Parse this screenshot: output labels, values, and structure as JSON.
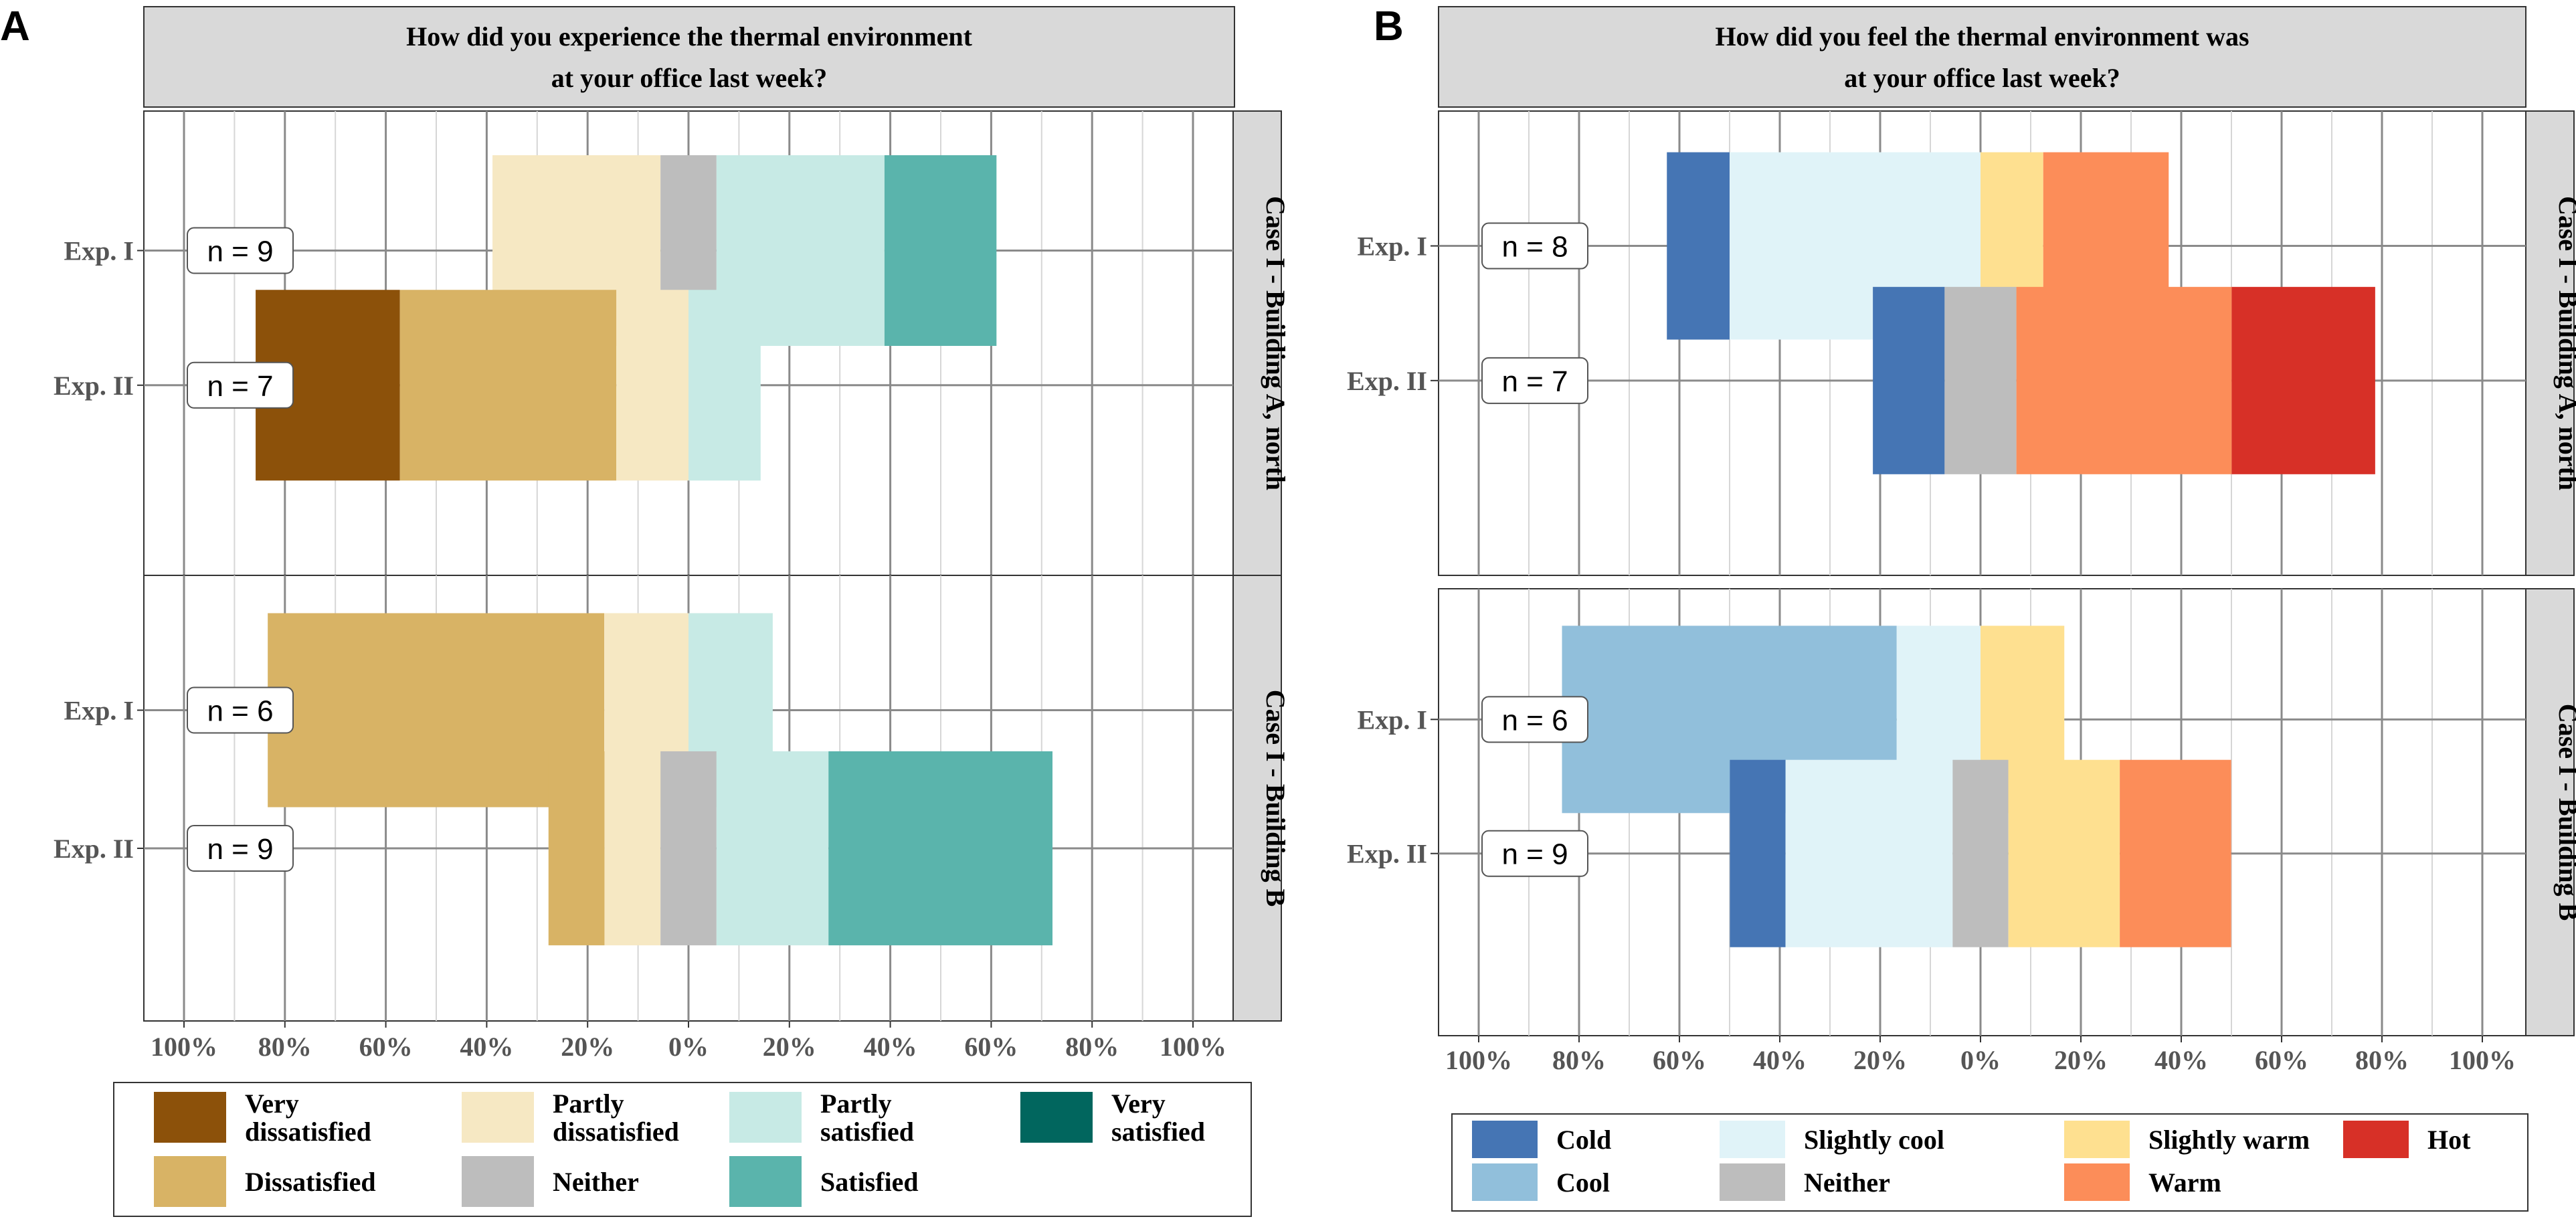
{
  "chart_data": [
    {
      "type": "bar",
      "orientation": "horizontal-diverging",
      "panel_letter": "A",
      "title_lines": [
        "How did you experience the thermal environment",
        "at your office last week?"
      ],
      "xlim": [
        -100,
        100
      ],
      "x_ticks": [
        -100,
        -80,
        -60,
        -40,
        -20,
        0,
        20,
        40,
        60,
        80,
        100
      ],
      "x_tick_labels": [
        "100%",
        "80%",
        "60%",
        "40%",
        "20%",
        "0%",
        "20%",
        "40%",
        "60%",
        "80%",
        "100%"
      ],
      "legend_position": "bottom",
      "categories": [
        {
          "name": "Very dissatisfied",
          "label_lines": [
            "Very",
            "dissatisfied"
          ],
          "color": "#8C510A"
        },
        {
          "name": "Dissatisfied",
          "label_lines": [
            "Dissatisfied"
          ],
          "color": "#D8B365"
        },
        {
          "name": "Partly dissatisfied",
          "label_lines": [
            "Partly",
            "dissatisfied"
          ],
          "color": "#F6E8C3"
        },
        {
          "name": "Neither",
          "label_lines": [
            "Neither"
          ],
          "color": "#BDBDBD"
        },
        {
          "name": "Partly satisfied",
          "label_lines": [
            "Partly",
            "satisfied"
          ],
          "color": "#C7EAE5"
        },
        {
          "name": "Satisfied",
          "label_lines": [
            "Satisfied"
          ],
          "color": "#5AB4AC"
        },
        {
          "name": "Very satisfied",
          "label_lines": [
            "Very",
            "satisfied"
          ],
          "color": "#01665E"
        }
      ],
      "legend_grid": [
        [
          0,
          2,
          4,
          6
        ],
        [
          1,
          3,
          5,
          null
        ]
      ],
      "facets": [
        {
          "strip": "Case I - Building A, north",
          "rows": [
            {
              "label": "Exp. I",
              "n_label": "n = 9",
              "segments": [
                0,
                0,
                33.3,
                11.1,
                33.3,
                22.2,
                0
              ]
            },
            {
              "label": "Exp. II",
              "n_label": "n = 7",
              "segments": [
                28.6,
                42.9,
                14.3,
                0,
                14.3,
                0,
                0
              ]
            }
          ]
        },
        {
          "strip": "Case I - Building B",
          "rows": [
            {
              "label": "Exp. I",
              "n_label": "n = 6",
              "segments": [
                0,
                66.7,
                16.7,
                0,
                16.7,
                0,
                0
              ]
            },
            {
              "label": "Exp. II",
              "n_label": "n = 9",
              "segments": [
                0,
                11.1,
                11.1,
                11.1,
                22.2,
                44.4,
                0
              ]
            }
          ]
        }
      ]
    },
    {
      "type": "bar",
      "orientation": "horizontal-diverging",
      "panel_letter": "B",
      "title_lines": [
        "How did you feel the thermal environment was",
        "at your office last week?"
      ],
      "xlim": [
        -100,
        100
      ],
      "x_ticks": [
        -100,
        -80,
        -60,
        -40,
        -20,
        0,
        20,
        40,
        60,
        80,
        100
      ],
      "x_tick_labels": [
        "100%",
        "80%",
        "60%",
        "40%",
        "20%",
        "0%",
        "20%",
        "40%",
        "60%",
        "80%",
        "100%"
      ],
      "legend_position": "bottom",
      "categories": [
        {
          "name": "Cold",
          "label_lines": [
            "Cold"
          ],
          "color": "#4575B4"
        },
        {
          "name": "Cool",
          "label_lines": [
            "Cool"
          ],
          "color": "#91BFDB"
        },
        {
          "name": "Slightly cool",
          "label_lines": [
            "Slightly cool"
          ],
          "color": "#E0F3F8"
        },
        {
          "name": "Neither",
          "label_lines": [
            "Neither"
          ],
          "color": "#BDBDBD"
        },
        {
          "name": "Slightly warm",
          "label_lines": [
            "Slightly warm"
          ],
          "color": "#FEE090"
        },
        {
          "name": "Warm",
          "label_lines": [
            "Warm"
          ],
          "color": "#FC8D59"
        },
        {
          "name": "Hot",
          "label_lines": [
            "Hot"
          ],
          "color": "#D73027"
        }
      ],
      "legend_grid": [
        [
          0,
          2,
          4,
          6
        ],
        [
          1,
          3,
          5,
          null
        ]
      ],
      "facets": [
        {
          "strip": "Case I - Building A, north",
          "rows": [
            {
              "label": "Exp. I",
              "n_label": "n = 8",
              "segments": [
                12.5,
                0,
                50,
                0,
                12.5,
                25,
                0
              ]
            },
            {
              "label": "Exp. II",
              "n_label": "n = 7",
              "segments": [
                14.3,
                0,
                0,
                14.3,
                0,
                42.9,
                28.6
              ]
            }
          ]
        },
        {
          "strip": "Case I - Building B",
          "rows": [
            {
              "label": "Exp. I",
              "n_label": "n = 6",
              "segments": [
                0,
                66.7,
                16.7,
                0,
                16.7,
                0,
                0
              ]
            },
            {
              "label": "Exp. II",
              "n_label": "n = 9",
              "segments": [
                11.1,
                0,
                33.3,
                11.1,
                22.2,
                22.2,
                0
              ]
            }
          ]
        }
      ]
    }
  ]
}
